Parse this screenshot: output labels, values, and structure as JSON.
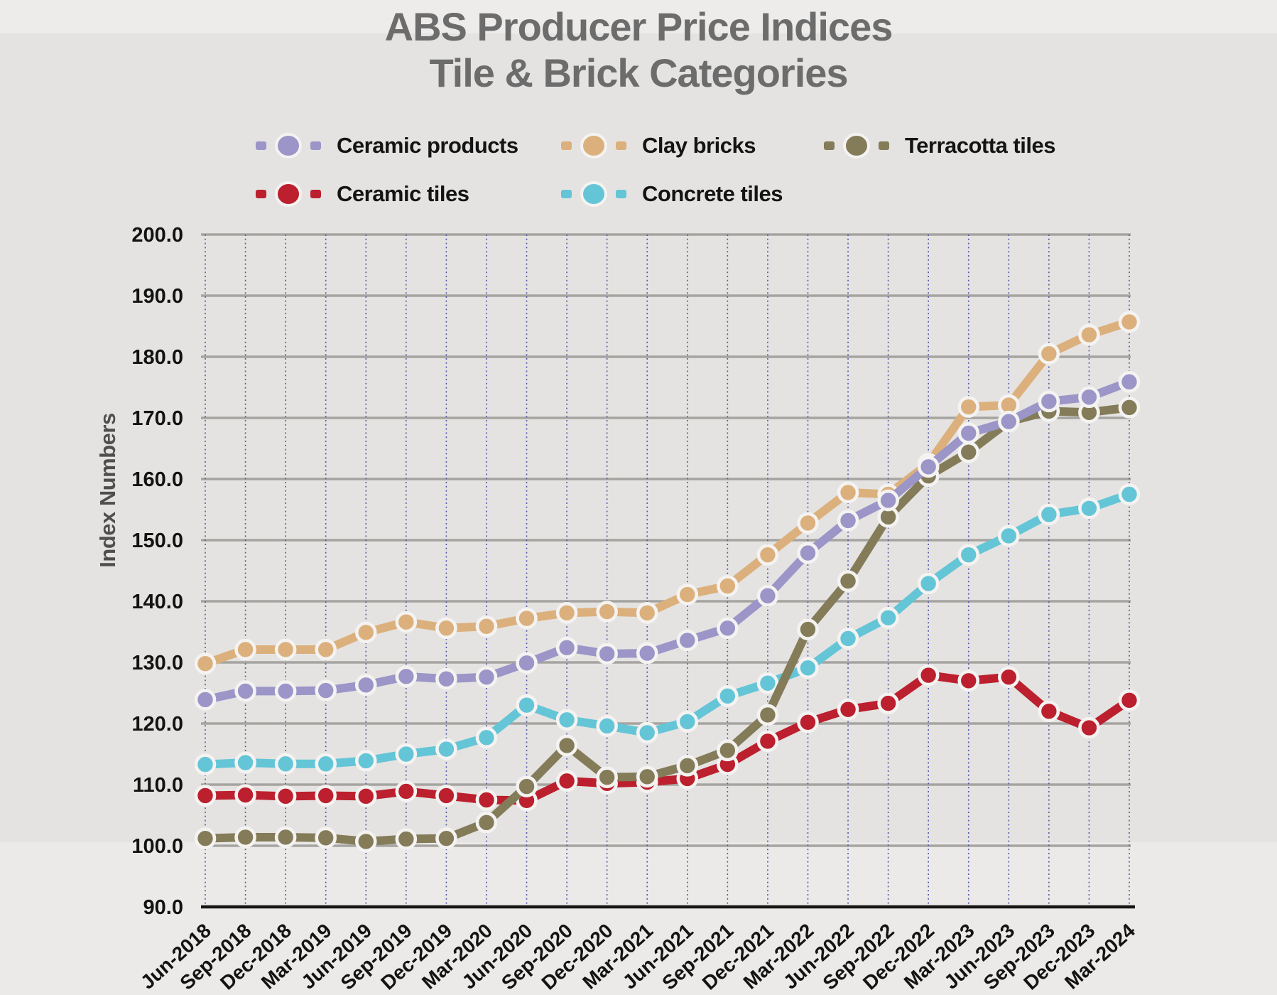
{
  "title": {
    "line1": "ABS Producer Price Indices",
    "line2": "Tile & Brick Categories"
  },
  "y_axis_label": "Index Numbers",
  "chart_data": {
    "type": "line",
    "title": "ABS Producer Price Indices — Tile & Brick Categories",
    "ylabel": "Index Numbers",
    "ylim": [
      90,
      200
    ],
    "ytick_step": 10,
    "yticks": [
      200.0,
      190.0,
      180.0,
      170.0,
      160.0,
      150.0,
      140.0,
      130.0,
      120.0,
      110.0,
      100.0,
      90.0
    ],
    "grid": {
      "horizontal": "solid gray",
      "vertical": "dotted blue at every category"
    },
    "legend_position": "top, two rows",
    "marker_style": "circle with white ring",
    "categories": [
      "Jun-2018",
      "Sep-2018",
      "Dec-2018",
      "Mar-2019",
      "Jun-2019",
      "Sep-2019",
      "Dec-2019",
      "Mar-2020",
      "Jun-2020",
      "Sep-2020",
      "Dec-2020",
      "Mar-2021",
      "Jun-2021",
      "Sep-2021",
      "Dec-2021",
      "Mar-2022",
      "Jun-2022",
      "Sep-2022",
      "Dec-2022",
      "Mar-2023",
      "Jun-2023",
      "Sep-2023",
      "Dec-2023",
      "Mar-2024"
    ],
    "series": [
      {
        "name": "Ceramic products",
        "color": "#9b95c8",
        "values": [
          123.9,
          125.3,
          125.3,
          125.4,
          126.3,
          127.7,
          127.3,
          127.6,
          129.9,
          132.4,
          131.4,
          131.5,
          133.6,
          135.6,
          140.9,
          147.9,
          153.2,
          156.5,
          162.0,
          167.5,
          169.4,
          172.7,
          173.4,
          175.9
        ]
      },
      {
        "name": "Clay bricks",
        "color": "#dcb07c",
        "values": [
          129.8,
          132.1,
          132.1,
          132.1,
          134.9,
          136.6,
          135.6,
          135.9,
          137.2,
          138.1,
          138.3,
          138.1,
          141.1,
          142.5,
          147.6,
          152.8,
          157.8,
          157.5,
          162.5,
          171.8,
          172.1,
          180.5,
          183.6,
          185.7
        ]
      },
      {
        "name": "Terracotta tiles",
        "color": "#847b59",
        "values": [
          101.2,
          101.4,
          101.4,
          101.3,
          100.7,
          101.1,
          101.2,
          103.8,
          109.7,
          116.4,
          111.2,
          111.3,
          113.1,
          115.6,
          121.4,
          135.4,
          143.3,
          153.8,
          160.5,
          164.4,
          169.4,
          171.1,
          170.9,
          171.7
        ]
      },
      {
        "name": "Ceramic tiles",
        "color": "#bc1f2d",
        "values": [
          108.2,
          108.3,
          108.1,
          108.2,
          108.1,
          108.9,
          108.2,
          107.5,
          107.4,
          110.6,
          110.2,
          110.4,
          111.0,
          113.3,
          117.1,
          120.2,
          122.3,
          123.3,
          127.9,
          127.0,
          127.6,
          122.0,
          119.3,
          123.8
        ]
      },
      {
        "name": "Concrete tiles",
        "color": "#64c5d7",
        "values": [
          113.3,
          113.6,
          113.4,
          113.4,
          113.9,
          115.0,
          115.8,
          117.7,
          123.0,
          120.6,
          119.6,
          118.5,
          120.3,
          124.5,
          126.6,
          129.1,
          133.9,
          137.3,
          142.9,
          147.6,
          150.7,
          154.2,
          155.2,
          157.5
        ]
      }
    ]
  },
  "colors": {
    "background": "#e4e3e1",
    "gridline": "#a6a4a1",
    "vertical_gridline": "#5158a8",
    "axis": "#151515",
    "title_text": "#6c6c6c",
    "tick_text": "#131313",
    "point_ring": "#f4f3f1"
  }
}
